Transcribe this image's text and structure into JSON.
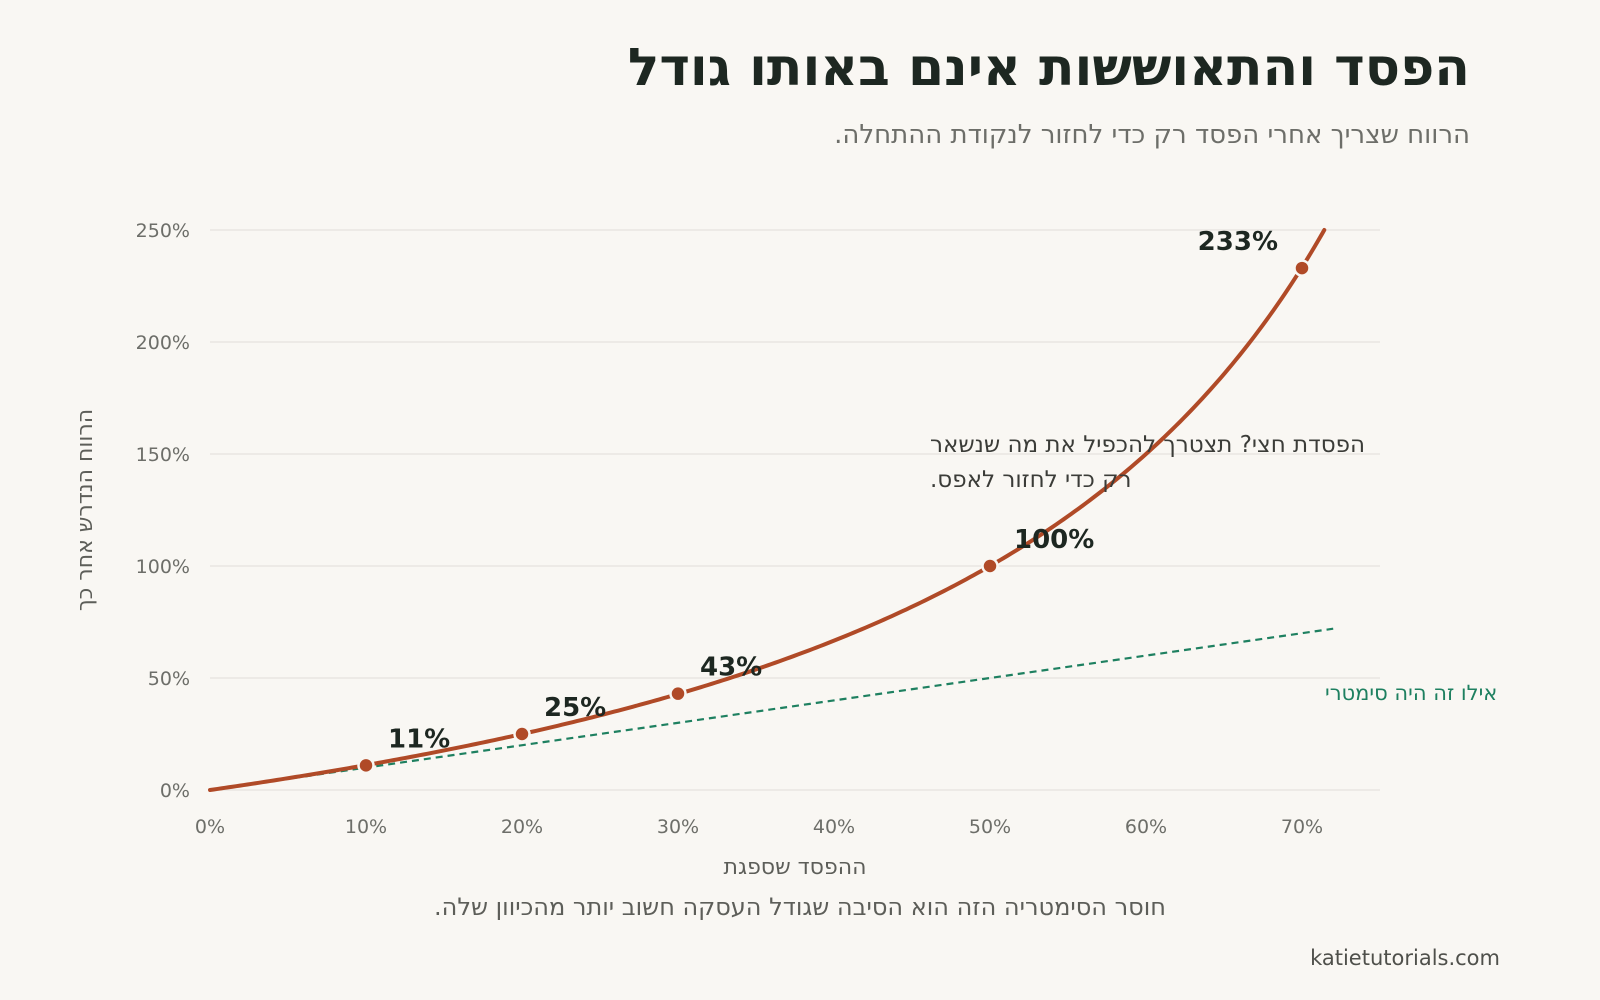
{
  "page": {
    "title": "הפסד והתאוששות אינם באותו גודל",
    "subtitle": "הרווח שצריך אחרי הפסד רק כדי לחזור לנקודת ההתחלה.",
    "caption": "חוסר הסימטריה הזה הוא הסיבה שגודל העסקה חשוב יותר מהכיוון שלה.",
    "source": "katietutorials.com"
  },
  "colors": {
    "background": "#f9f7f3",
    "curve": "#b04a27",
    "reference": "#1e8060",
    "grid": "#e6e3dd",
    "text": "#1d2721"
  },
  "chart_data": {
    "type": "line",
    "xlabel": "ההפסד שספגת",
    "ylabel": "הרווח הנדרש אחר כך",
    "xlim": [
      0,
      72
    ],
    "ylim": [
      0,
      250
    ],
    "x_ticks": [
      "0%",
      "10%",
      "20%",
      "30%",
      "40%",
      "50%",
      "60%",
      "70%"
    ],
    "x_tick_values": [
      0,
      10,
      20,
      30,
      40,
      50,
      60,
      70
    ],
    "y_ticks": [
      "0%",
      "50%",
      "100%",
      "150%",
      "200%",
      "250%"
    ],
    "y_tick_values": [
      0,
      50,
      100,
      150,
      200,
      250
    ],
    "grid": "horizontal",
    "series": [
      {
        "style": "solid",
        "color": "#b04a27",
        "formula": "required_gain = loss / (1 - loss)"
      },
      {
        "name": "אילו זה היה סימטרי",
        "style": "dashed",
        "color": "#1e8060",
        "formula": "required_gain = loss"
      }
    ],
    "highlighted_points": [
      {
        "x": 10,
        "y": 11,
        "label": "11%"
      },
      {
        "x": 20,
        "y": 25,
        "label": "25%"
      },
      {
        "x": 30,
        "y": 43,
        "label": "43%"
      },
      {
        "x": 50,
        "y": 100,
        "label": "100%"
      },
      {
        "x": 70,
        "y": 233,
        "label": "233%"
      }
    ],
    "annotation": {
      "lines": [
        "הפסדת חצי? תצטרך להכפיל את מה שנשאר",
        "רק כדי לחזור לאפס."
      ]
    }
  }
}
